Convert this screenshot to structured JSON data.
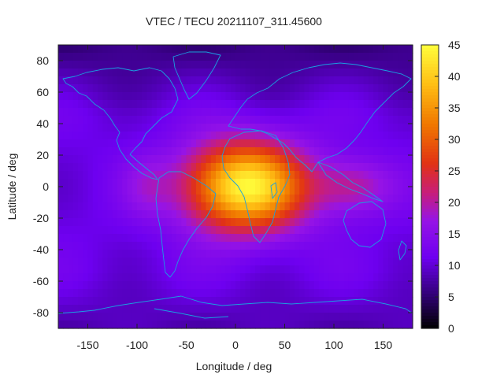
{
  "chart_data": {
    "type": "heatmap",
    "title": "VTEC / TECU 20211107_311.45600",
    "xlabel": "Longitude / deg",
    "ylabel": "Latitude / deg",
    "xlim": [
      -180,
      180
    ],
    "ylim": [
      -90,
      90
    ],
    "x_ticks": [
      "-150",
      "-100",
      "-50",
      "0",
      "50",
      "100",
      "150"
    ],
    "x_tick_values": [
      -150,
      -100,
      -50,
      0,
      50,
      100,
      150
    ],
    "y_ticks": [
      "80",
      "60",
      "40",
      "20",
      "0",
      "-20",
      "-40",
      "-60",
      "-80"
    ],
    "y_tick_values": [
      80,
      60,
      40,
      20,
      0,
      -20,
      -40,
      -60,
      -80
    ],
    "colorbar": {
      "range": [
        0,
        45
      ],
      "ticks": [
        "45",
        "40",
        "35",
        "30",
        "25",
        "20",
        "15",
        "10",
        "5",
        "0"
      ],
      "tick_values": [
        45,
        40,
        35,
        30,
        25,
        20,
        15,
        10,
        5,
        0
      ]
    },
    "field": {
      "background": 11,
      "peak_center": [
        10,
        0
      ],
      "peak_value": 44,
      "description_units": "TECU"
    },
    "colors": {
      "coastline": "#1a9fe0",
      "palette_low": "#000000",
      "palette_mid": "#7a00ff",
      "palette_high": "#ffff30"
    }
  }
}
